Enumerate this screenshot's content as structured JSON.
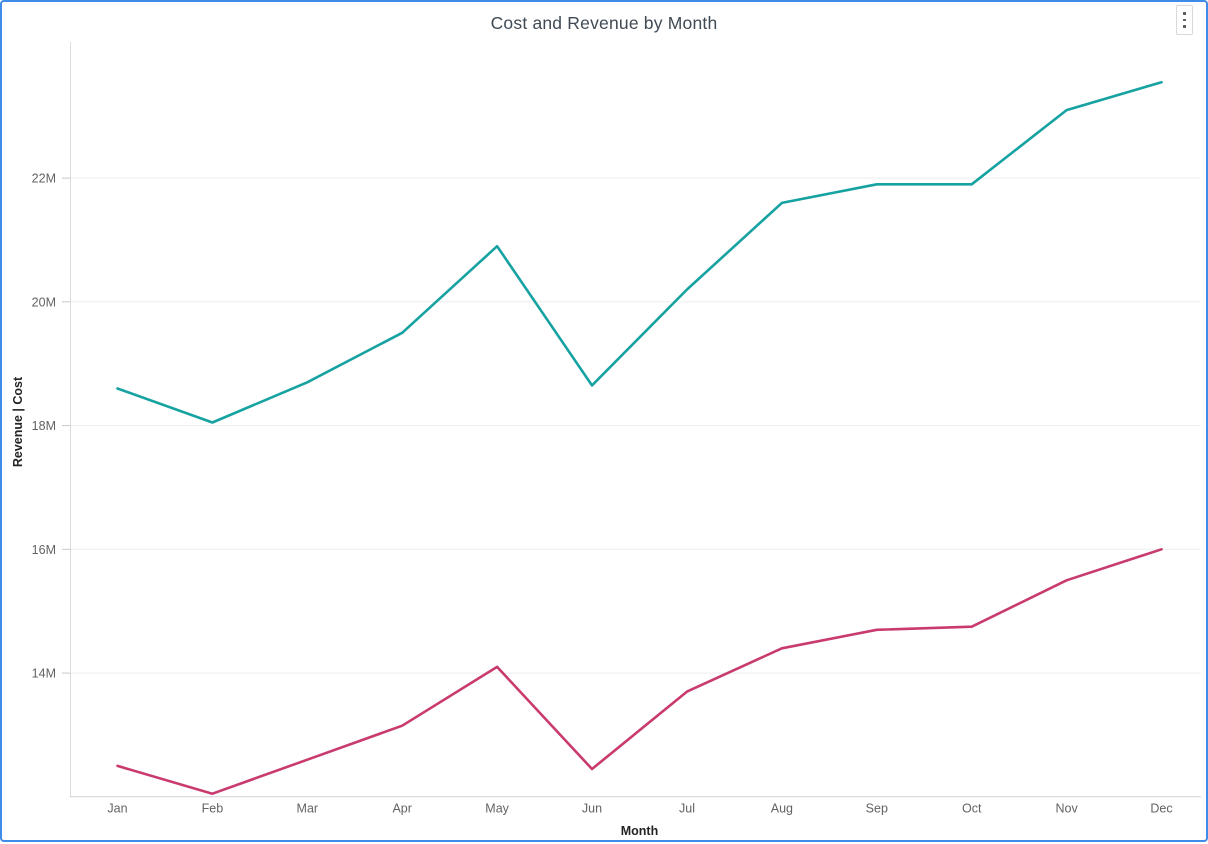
{
  "card": {
    "accent_border_color": "#3F8CE8"
  },
  "header": {
    "more_options_icon": "kebab-vertical-icon"
  },
  "chart_data": {
    "type": "line",
    "title": "Cost and Revenue by Month",
    "xlabel": "Month",
    "ylabel": "Revenue | Cost",
    "categories": [
      "Jan",
      "Feb",
      "Mar",
      "Apr",
      "May",
      "Jun",
      "Jul",
      "Aug",
      "Sep",
      "Oct",
      "Nov",
      "Dec"
    ],
    "unit": "millions",
    "series": [
      {
        "name": "Revenue",
        "color": "#17A2A2",
        "values_millions": [
          18.6,
          18.05,
          18.7,
          19.5,
          20.9,
          18.65,
          20.2,
          21.6,
          21.9,
          21.9,
          23.1,
          23.55
        ]
      },
      {
        "name": "Cost",
        "color": "#C93A6E",
        "values_millions": [
          12.5,
          12.05,
          12.6,
          13.15,
          14.1,
          12.45,
          13.7,
          14.4,
          14.7,
          14.75,
          15.5,
          16.0
        ]
      }
    ],
    "y_ticks": [
      {
        "value": 14,
        "label": "14M"
      },
      {
        "value": 16,
        "label": "16M"
      },
      {
        "value": 18,
        "label": "18M"
      },
      {
        "value": 20,
        "label": "20M"
      },
      {
        "value": 22,
        "label": "22M"
      }
    ],
    "ylim": [
      12,
      24.2
    ],
    "grid": "horizontal",
    "legend": "none",
    "markers": "none"
  }
}
